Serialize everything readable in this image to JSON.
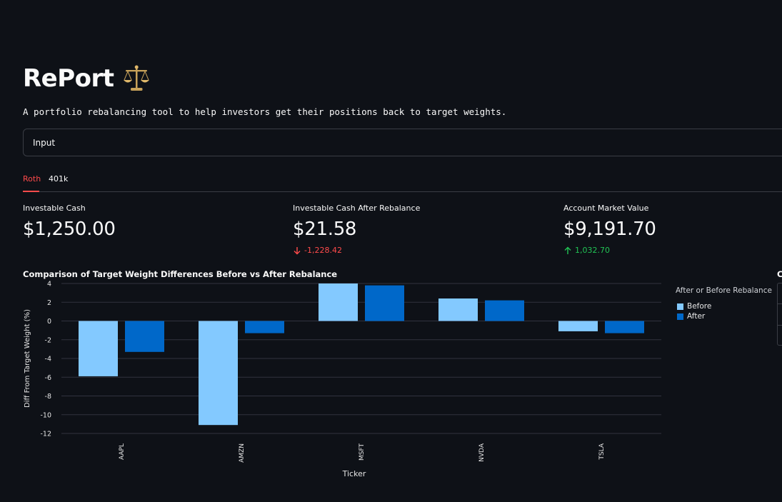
{
  "app": {
    "title": "RePort",
    "title_icon": "balance-scale-icon",
    "subtitle": "A portfolio rebalancing tool to help investors get their positions back to target weights."
  },
  "expander": {
    "label": "Input"
  },
  "tabs": [
    {
      "label": "Roth",
      "active": true
    },
    {
      "label": "401k",
      "active": false
    }
  ],
  "metrics": [
    {
      "label": "Investable Cash",
      "value": "$1,250.00",
      "delta": ""
    },
    {
      "label": "Investable Cash After Rebalance",
      "value": "$21.58",
      "delta": "-1,228.42",
      "delta_direction": "down"
    },
    {
      "label": "Account Market Value",
      "value": "$9,191.70",
      "delta": "1,032.70",
      "delta_direction": "up"
    }
  ],
  "colors": {
    "background": "#0e1117",
    "before_bar": "#83c9ff",
    "after_bar": "#0068c9",
    "delta_down": "#ff4b4b",
    "delta_up": "#21c354",
    "tab_active": "#ff4b4b"
  },
  "chart_data": {
    "type": "bar",
    "title": "Comparison of Target Weight Differences Before vs After Rebalance",
    "xlabel": "Ticker",
    "ylabel": "Diff From Target Weight (%)",
    "categories": [
      "AAPL",
      "AMZN",
      "MSFT",
      "NVDA",
      "TSLA"
    ],
    "series": [
      {
        "name": "Before",
        "values": [
          -5.9,
          -11.1,
          4.0,
          2.4,
          -1.1
        ]
      },
      {
        "name": "After",
        "values": [
          -3.3,
          -1.3,
          3.8,
          2.2,
          -1.3
        ]
      }
    ],
    "ylim": [
      -12.0,
      4.0
    ],
    "yticks": [
      4,
      2,
      0,
      -2,
      -4,
      -6,
      -8,
      -10,
      -12
    ],
    "grid": true,
    "legend_title": "After or Before Rebalance",
    "legend_placement": "right"
  },
  "side_panel": {
    "label": "C"
  }
}
